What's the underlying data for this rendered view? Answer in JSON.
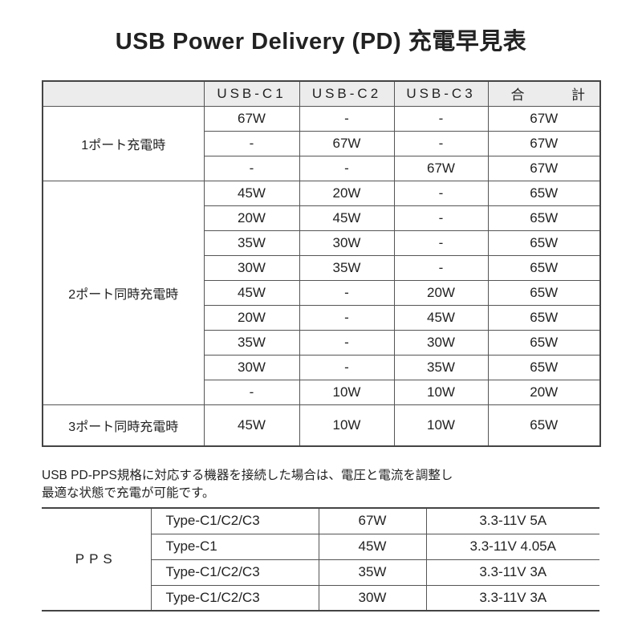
{
  "title": "USB Power Delivery (PD) 充電早見表",
  "main_table": {
    "headers": [
      "",
      "USB-C1",
      "USB-C2",
      "USB-C3",
      [
        "合",
        "計"
      ]
    ],
    "groups": [
      {
        "label": "1ポート充電時",
        "rows": [
          [
            "67W",
            "-",
            "-",
            "67W"
          ],
          [
            "-",
            "67W",
            "-",
            "67W"
          ],
          [
            "-",
            "-",
            "67W",
            "67W"
          ]
        ]
      },
      {
        "label": "2ポート同時充電時",
        "rows": [
          [
            "45W",
            "20W",
            "-",
            "65W"
          ],
          [
            "20W",
            "45W",
            "-",
            "65W"
          ],
          [
            "35W",
            "30W",
            "-",
            "65W"
          ],
          [
            "30W",
            "35W",
            "-",
            "65W"
          ],
          [
            "45W",
            "-",
            "20W",
            "65W"
          ],
          [
            "20W",
            "-",
            "45W",
            "65W"
          ],
          [
            "35W",
            "-",
            "30W",
            "65W"
          ],
          [
            "30W",
            "-",
            "35W",
            "65W"
          ],
          [
            "-",
            "10W",
            "10W",
            "20W"
          ]
        ]
      },
      {
        "label": "3ポート同時充電時",
        "rows": [
          [
            "45W",
            "10W",
            "10W",
            "65W"
          ]
        ]
      }
    ]
  },
  "note": {
    "line1": "USB PD-PPS規格に対応する機器を接続した場合は、電圧と電流を調整し",
    "line2": "最適な状態で充電が可能です。"
  },
  "pps_table": {
    "label": "PPS",
    "rows": [
      [
        "Type-C1/C2/C3",
        "67W",
        "3.3-11V 5A"
      ],
      [
        "Type-C1",
        "45W",
        "3.3-11V 4.05A"
      ],
      [
        "Type-C1/C2/C3",
        "35W",
        "3.3-11V 3A"
      ],
      [
        "Type-C1/C2/C3",
        "30W",
        "3.3-11V 3A"
      ]
    ]
  }
}
